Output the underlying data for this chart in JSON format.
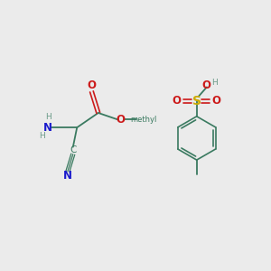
{
  "background_color": "#ebebeb",
  "fig_size": [
    3.0,
    3.0
  ],
  "dpi": 100,
  "bond_color": "#3a7a60",
  "atom_colors": {
    "N": "#1a1acc",
    "O": "#cc1a1a",
    "S": "#ccaa00",
    "C": "#3a7a60",
    "H": "#6a9a88",
    "default": "#3a7a60"
  },
  "font_size": 8.5,
  "small_font_size": 6.5
}
